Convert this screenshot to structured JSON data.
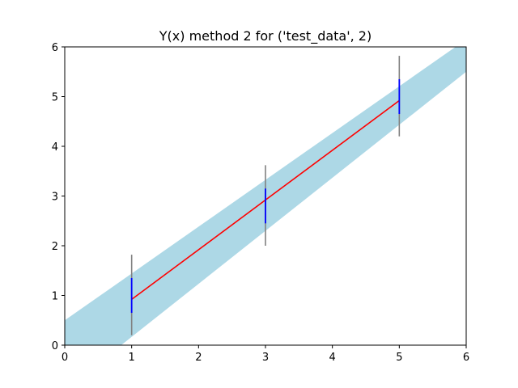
{
  "chart_data": {
    "type": "line",
    "title": "Y(x) method 2 for ('test_data', 2)",
    "xlabel": "",
    "ylabel": "",
    "xlim": [
      0,
      6
    ],
    "ylim": [
      0,
      6
    ],
    "xticks": [
      0,
      1,
      2,
      3,
      4,
      5,
      6
    ],
    "yticks": [
      0,
      1,
      2,
      3,
      4,
      5,
      6
    ],
    "grid": false,
    "legend": "none",
    "band": {
      "color": "#add8e6",
      "upper": [
        [
          0,
          0.5
        ],
        [
          6,
          6.15
        ]
      ],
      "lower": [
        [
          0,
          -0.9
        ],
        [
          6,
          5.5
        ]
      ]
    },
    "line": {
      "color": "#ff0000",
      "x": [
        1,
        3,
        5
      ],
      "y": [
        0.92,
        2.92,
        4.92
      ]
    },
    "points": {
      "x": [
        1,
        3,
        5
      ],
      "y": [
        1.0,
        2.8,
        5.0
      ],
      "outer_error": {
        "color": "#808080",
        "low": [
          0.2,
          2.0,
          4.2
        ],
        "high": [
          1.82,
          3.62,
          5.82
        ]
      },
      "inner_error": {
        "color": "#0000ff",
        "low": [
          0.65,
          2.45,
          4.65
        ],
        "high": [
          1.35,
          3.15,
          5.35
        ]
      }
    }
  }
}
